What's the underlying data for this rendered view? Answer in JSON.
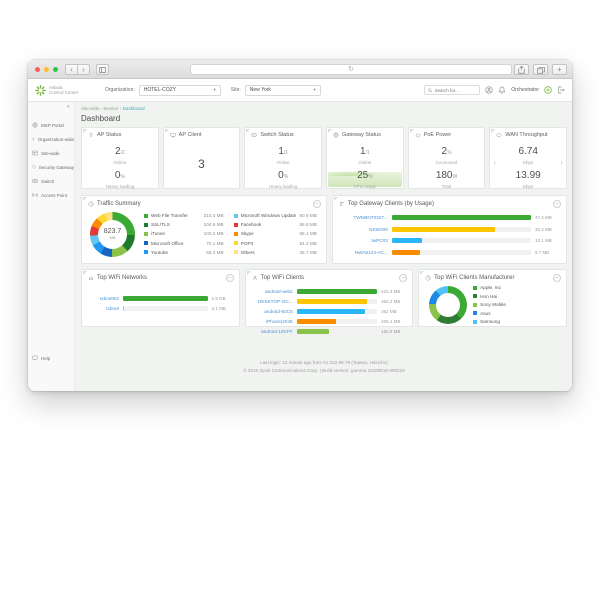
{
  "chrome": {
    "back": "‹",
    "forward": "›",
    "reload": "↻",
    "new_tab": "+"
  },
  "icons": {
    "caret": "▾",
    "collapse_sidebar": "«",
    "panel_collapse": "–",
    "prev": "‹",
    "next": "›"
  },
  "colors": {
    "accent_green": "#7cb342",
    "link_teal": "#35aebc",
    "link_blue": "#4a90d2",
    "traffic_light_red": "#ff5f57",
    "traffic_light_yellow": "#febc2e",
    "traffic_light_green": "#28c840"
  },
  "header": {
    "brand_line1": "nebula",
    "brand_line2": "Control Center",
    "org_label": "Organization:",
    "org_value": "HOTEL-COZY",
    "site_label": "Site:",
    "site_value": "New York",
    "search_placeholder": "Search for...",
    "orchestrator_label": "Orchestrator"
  },
  "breadcrumb": {
    "items": [
      "Site-wide",
      "Monitor",
      "Dashboard"
    ],
    "separator": "›"
  },
  "page_title": "Dashboard",
  "sidebar": {
    "items": [
      "MSP Portal",
      "Organization-wide",
      "Site-wide",
      "Security Gateway",
      "Switch",
      "Access Point"
    ],
    "help_label": "Help"
  },
  "status_cards": [
    {
      "title": "AP Status",
      "metrics": [
        {
          "value": "2",
          "suffix": "/2",
          "label": "Online"
        },
        {
          "value": "0",
          "suffix": "%",
          "label": "Heavy loading"
        }
      ]
    },
    {
      "title": "AP Client",
      "big_value": "3"
    },
    {
      "title": "Switch Status",
      "metrics": [
        {
          "value": "1",
          "suffix": "/1",
          "label": "Online"
        },
        {
          "value": "0",
          "suffix": "%",
          "label": "Heavy loading"
        }
      ]
    },
    {
      "title": "Gateway Status",
      "metrics": [
        {
          "value": "1",
          "suffix": "/1",
          "label": "Online"
        },
        {
          "value": "25",
          "suffix": "%",
          "label": "CPU usage"
        }
      ]
    },
    {
      "title": "PoE Power",
      "metrics": [
        {
          "value": "2",
          "suffix": "%",
          "label": "Consumed"
        },
        {
          "value": "180",
          "suffix": "W",
          "label": "Total"
        }
      ]
    },
    {
      "title": "WAN Throughput",
      "metrics": [
        {
          "value": "6.74",
          "suffix": "",
          "label": "Kbps"
        },
        {
          "value": "13.99",
          "suffix": "",
          "label": "Kbps"
        }
      ]
    }
  ],
  "chart_data": {
    "traffic_summary": {
      "type": "pie",
      "title": "Traffic Summary",
      "center": {
        "value": "823.7",
        "unit": "MB"
      },
      "items": [
        {
          "label": "Web File Transfer",
          "num": 210.4,
          "display": "210.4 MB",
          "color": "#3aaa35"
        },
        {
          "label": "SSL/TLS",
          "num": 104.9,
          "display": "104.9 MB",
          "color": "#1e7b2e"
        },
        {
          "label": "iTunes",
          "num": 100.2,
          "display": "100.2 MB",
          "color": "#8bc34a"
        },
        {
          "label": "Microsoft Office",
          "num": 70.1,
          "display": "70.1 MB",
          "color": "#1565c0"
        },
        {
          "label": "Youtube",
          "num": 65.3,
          "display": "65.3 MB",
          "color": "#2196f3"
        },
        {
          "label": "Microsoft Windows Update",
          "num": 60.9,
          "display": "60.9 MB",
          "color": "#64c5f0"
        },
        {
          "label": "Facebook",
          "num": 56.8,
          "display": "56.8 MB",
          "color": "#e53935"
        },
        {
          "label": "Skype",
          "num": 55.1,
          "display": "55.1 MB",
          "color": "#fb8c00"
        },
        {
          "label": "POP3",
          "num": 54.2,
          "display": "54.2 MB",
          "color": "#fdd835"
        },
        {
          "label": "Others",
          "num": 45.7,
          "display": "45.7 MB",
          "color": "#ffe082"
        }
      ]
    },
    "gateway_clients": {
      "type": "bar",
      "title": "Top Gateway Clients (by Usage)",
      "items": [
        {
          "label": "TWNBNT0327...",
          "num": 47.4,
          "display": "47.4 MB",
          "color": "#3aaa35"
        },
        {
          "label": "NSW200",
          "num": 35.2,
          "display": "35.2 MB",
          "color": "#fdc500"
        },
        {
          "label": "twPC03",
          "num": 10.1,
          "display": "10.1 MB",
          "color": "#29b6f6"
        },
        {
          "label": "NWA5123-AC...",
          "num": 9.7,
          "display": "9.7 MB",
          "color": "#fb8c00"
        }
      ]
    },
    "wifi_networks": {
      "type": "bar",
      "title": "Top WiFi Networks",
      "items": [
        {
          "label": "txbnet5G",
          "num": 1536,
          "display": "1.5 GB",
          "color": "#3aaa35"
        },
        {
          "label": "txbnet",
          "num": 4.1,
          "display": "4.1 MB",
          "color": "#fdc500"
        }
      ]
    },
    "wifi_clients": {
      "type": "bar",
      "title": "Top WiFi Clients",
      "items": [
        {
          "label": "android-aeb2",
          "num": 415.3,
          "display": "415.3 MB",
          "color": "#3aaa35"
        },
        {
          "label": "DESKTOP-OC...",
          "num": 364.2,
          "display": "364.2 MB",
          "color": "#fdc500"
        },
        {
          "label": "android-92C6",
          "num": 352,
          "display": "352 MB",
          "color": "#29b6f6"
        },
        {
          "label": "iPhone(2046",
          "num": 205.1,
          "display": "205.1 MB",
          "color": "#fb8c00"
        },
        {
          "label": "android-10CFF",
          "num": 166.8,
          "display": "166.8 MB",
          "color": "#8bc34a"
        }
      ]
    },
    "wifi_manufacturer": {
      "type": "pie",
      "title": "Top WiFi Clients Manufacturer",
      "items": [
        {
          "label": "Apple, Inc",
          "num": 38,
          "color": "#3aaa35"
        },
        {
          "label": "Hon Hai",
          "num": 22,
          "color": "#2e7d32"
        },
        {
          "label": "Sony Mobile",
          "num": 16,
          "color": "#8bc34a"
        },
        {
          "label": "Asus",
          "num": 13,
          "color": "#1e88e5"
        },
        {
          "label": "Samsung",
          "num": 11,
          "color": "#4fc3f7"
        }
      ]
    }
  },
  "footer": {
    "line1": "Last login: 12 minute ago from 61.222.86.79 (Taiwan, Hsinchu)",
    "line2": "© 2019 Zyxel Communications Corp. | Build version: gamma 20190815-090229"
  }
}
